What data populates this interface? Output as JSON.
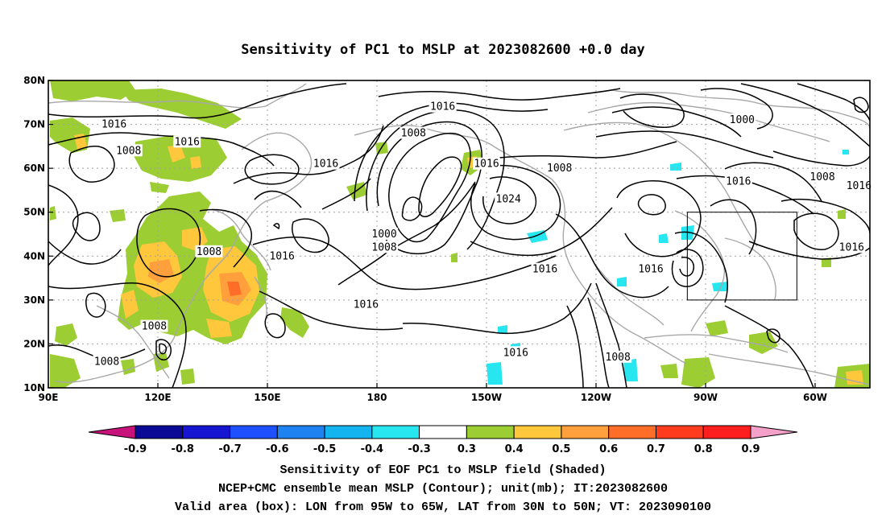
{
  "title": "Sensitivity of PC1 to MSLP at 2023082600 +0.0 day",
  "captions": [
    "Sensitivity of EOF PC1 to MSLP field (Shaded)",
    "NCEP+CMC ensemble mean MSLP (Contour); unit(mb); IT:2023082600",
    "Valid area (box): LON from 95W to 65W, LAT from 30N to 50N; VT: 2023090100"
  ],
  "map": {
    "lon_ticks": [
      {
        "lon": 90,
        "label": "90E"
      },
      {
        "lon": 120,
        "label": "120E"
      },
      {
        "lon": 150,
        "label": "150E"
      },
      {
        "lon": 180,
        "label": "180"
      },
      {
        "lon": 210,
        "label": "150W"
      },
      {
        "lon": 240,
        "label": "120W"
      },
      {
        "lon": 270,
        "label": "90W"
      },
      {
        "lon": 300,
        "label": "60W"
      }
    ],
    "lat_ticks": [
      {
        "lat": 80,
        "label": "80N"
      },
      {
        "lat": 70,
        "label": "70N"
      },
      {
        "lat": 60,
        "label": "60N"
      },
      {
        "lat": 50,
        "label": "50N"
      },
      {
        "lat": 40,
        "label": "40N"
      },
      {
        "lat": 30,
        "label": "30N"
      },
      {
        "lat": 20,
        "label": "20N"
      },
      {
        "lat": 10,
        "label": "10N"
      }
    ],
    "lon_range": [
      90,
      315
    ],
    "lat_range": [
      10,
      80
    ],
    "valid_box": {
      "lon_min": 265,
      "lon_max": 295,
      "lat_min": 30,
      "lat_max": 50
    },
    "contour_labels": [
      {
        "text": "1016",
        "lon": 108,
        "lat": 70
      },
      {
        "text": "1008",
        "lon": 112,
        "lat": 64
      },
      {
        "text": "1016",
        "lon": 128,
        "lat": 66
      },
      {
        "text": "1016",
        "lon": 166,
        "lat": 61
      },
      {
        "text": "1008",
        "lon": 134,
        "lat": 41
      },
      {
        "text": "1016",
        "lon": 154,
        "lat": 40
      },
      {
        "text": "1008",
        "lon": 119,
        "lat": 24
      },
      {
        "text": "1008",
        "lon": 106,
        "lat": 16
      },
      {
        "text": "1016",
        "lon": 177,
        "lat": 29
      },
      {
        "text": "1016",
        "lon": 198,
        "lat": 74
      },
      {
        "text": "1008",
        "lon": 190,
        "lat": 68
      },
      {
        "text": "1000",
        "lon": 182,
        "lat": 45
      },
      {
        "text": "1008",
        "lon": 182,
        "lat": 42
      },
      {
        "text": "1016",
        "lon": 210,
        "lat": 61
      },
      {
        "text": "1024",
        "lon": 216,
        "lat": 53
      },
      {
        "text": "1008",
        "lon": 230,
        "lat": 60
      },
      {
        "text": "1016",
        "lon": 226,
        "lat": 37
      },
      {
        "text": "1016",
        "lon": 218,
        "lat": 18
      },
      {
        "text": "1008",
        "lon": 246,
        "lat": 17
      },
      {
        "text": "1016",
        "lon": 255,
        "lat": 37
      },
      {
        "text": "1000",
        "lon": 280,
        "lat": 71
      },
      {
        "text": "1016",
        "lon": 279,
        "lat": 57
      },
      {
        "text": "1008",
        "lon": 302,
        "lat": 58
      },
      {
        "text": "1016",
        "lon": 312,
        "lat": 56
      },
      {
        "text": "1016",
        "lon": 310,
        "lat": 42
      }
    ]
  },
  "colorbar": {
    "labels": [
      "-0.9",
      "-0.8",
      "-0.7",
      "-0.6",
      "-0.5",
      "-0.4",
      "-0.3",
      "0.3",
      "0.4",
      "0.5",
      "0.6",
      "0.7",
      "0.8",
      "0.9"
    ],
    "colors": [
      "#c8147a",
      "#0a0a96",
      "#1616d2",
      "#1e50ff",
      "#1e82f0",
      "#14b4f0",
      "#28e6f0",
      "#ffffff",
      "#9ccd32",
      "#ffc83c",
      "#ffa03c",
      "#ff6e28",
      "#ff3c1e",
      "#ff1e1e",
      "#f5a0c8"
    ]
  }
}
